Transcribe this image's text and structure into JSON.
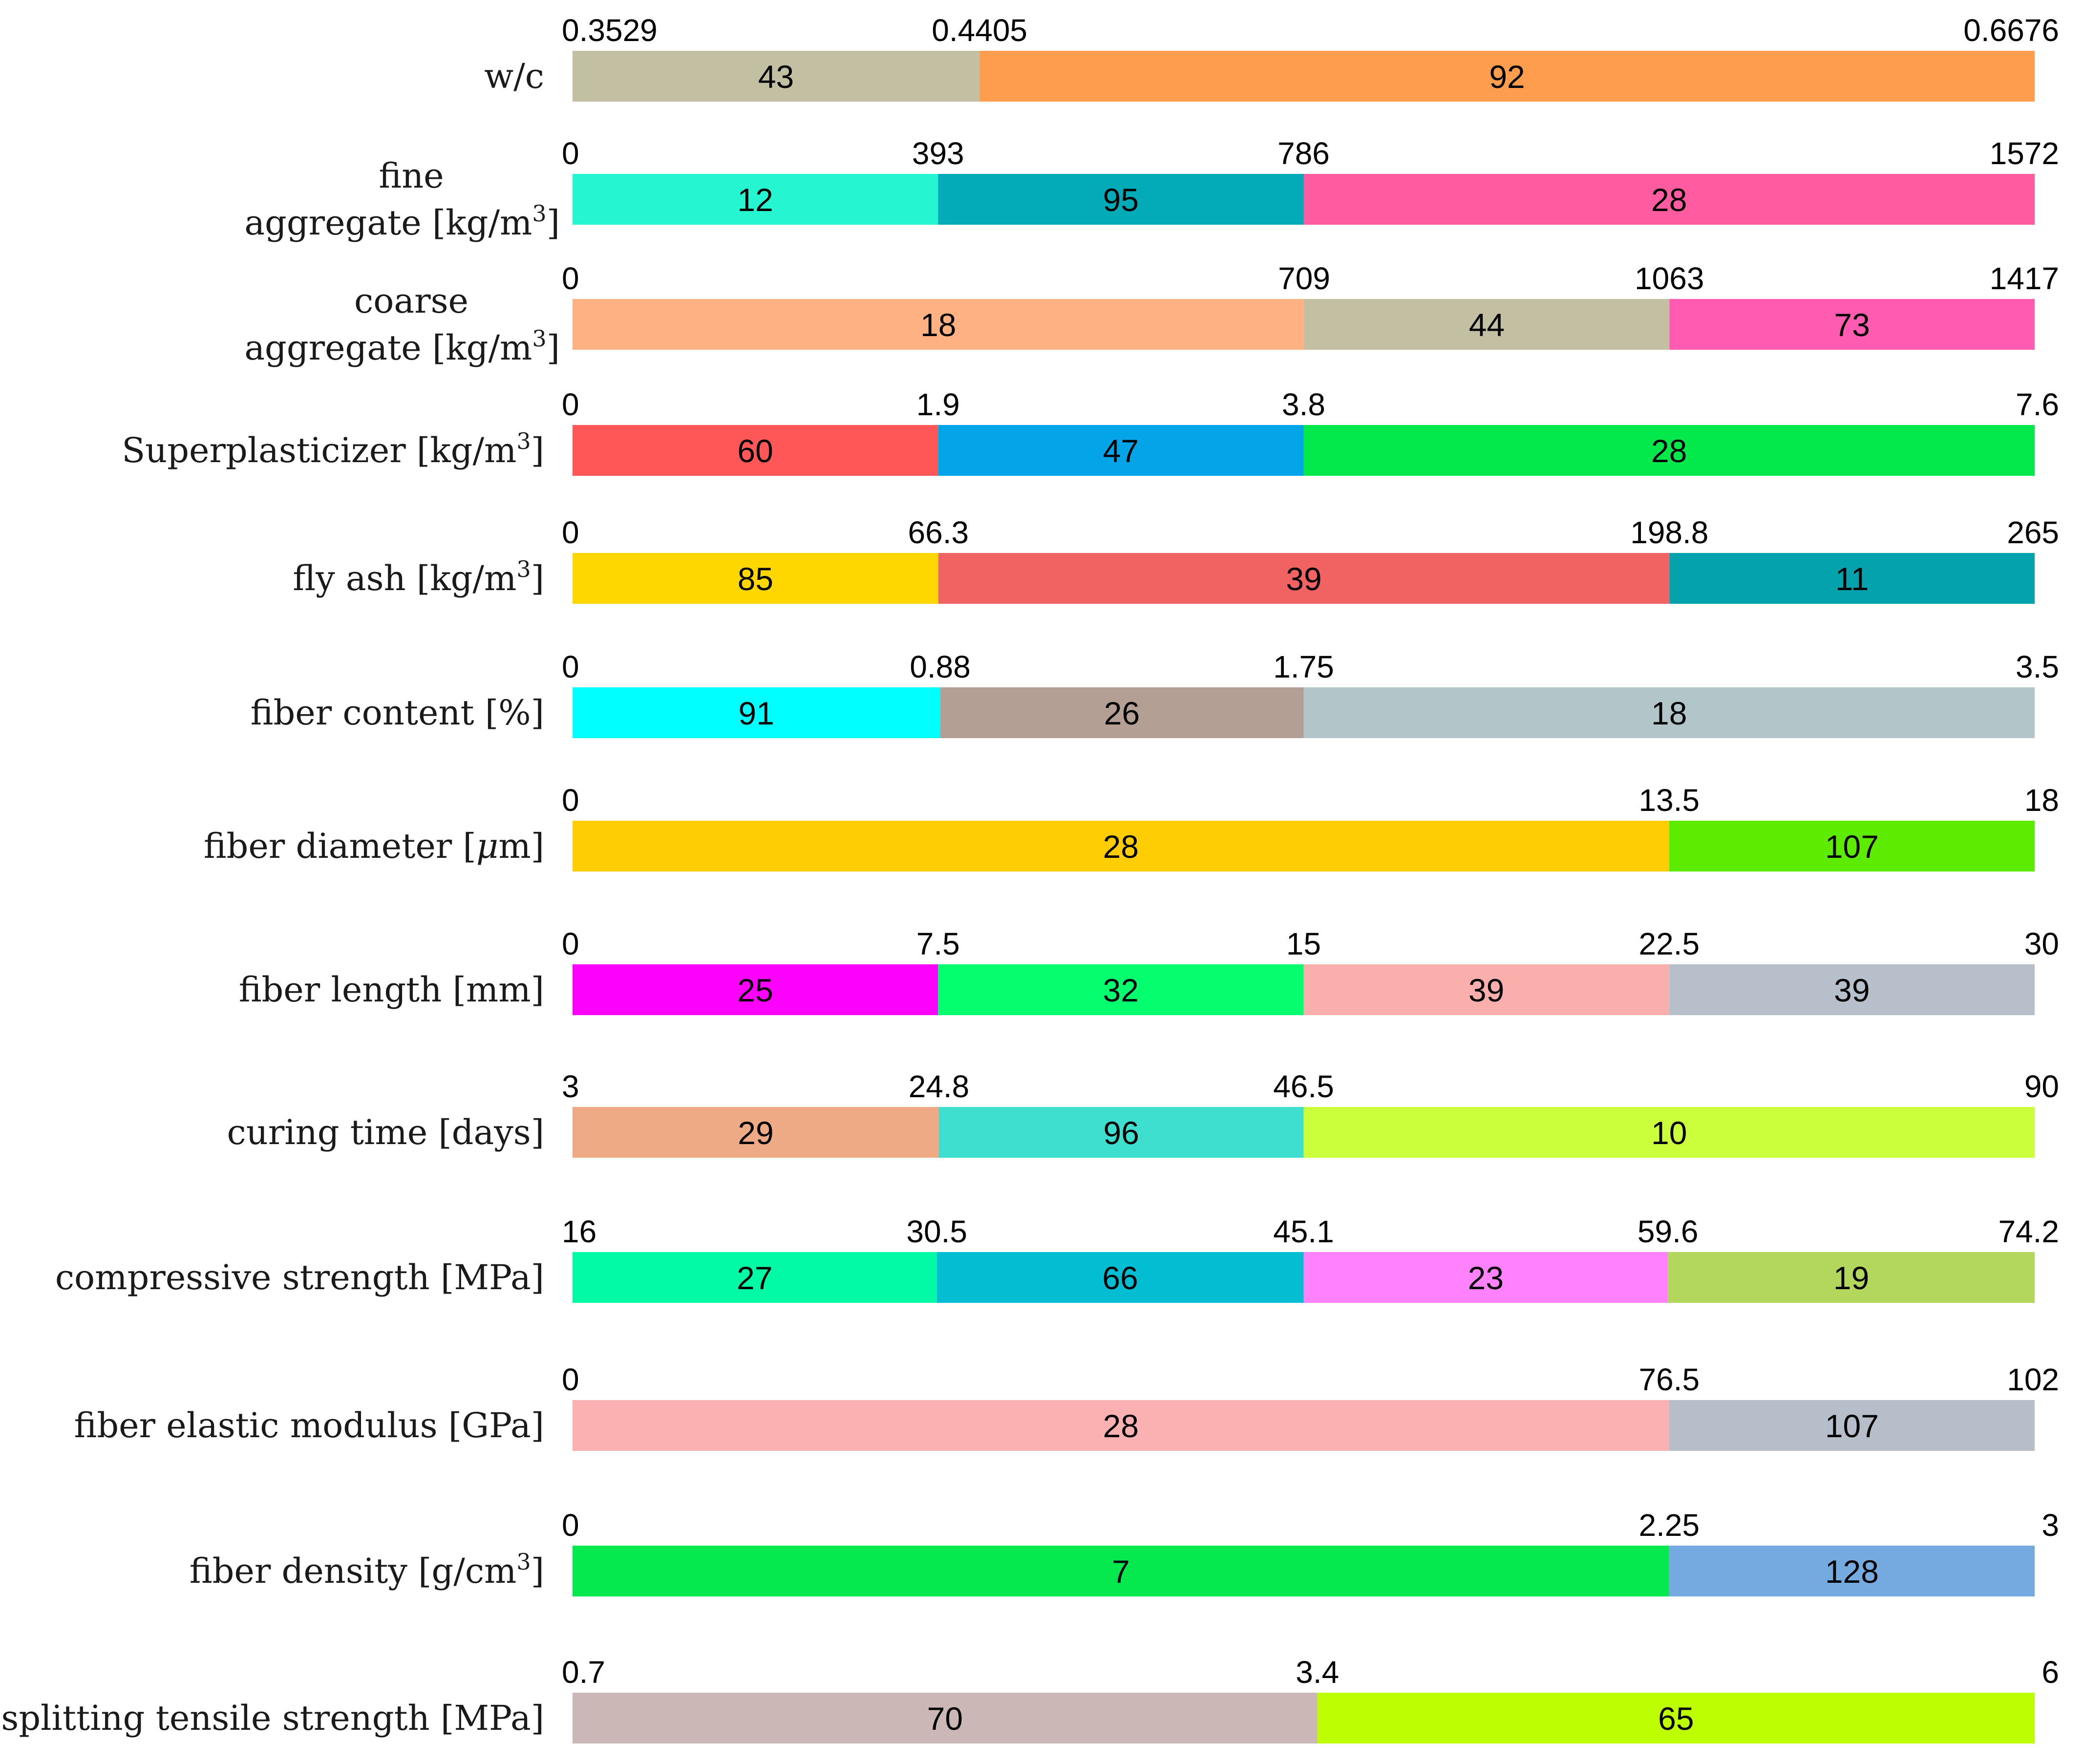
{
  "chart_data": {
    "type": "bar",
    "subtype": "segmented-range-bars",
    "description_note": "Each row splits a variable's value range into intervals; the number inside each segment is the sample count in that interval.",
    "rows": [
      {
        "label": [
          "w/c"
        ],
        "breaks": [
          0.3529,
          0.4405,
          0.6676
        ],
        "break_labels": [
          "0.3529",
          "0.4405",
          "0.6676"
        ],
        "counts": [
          43,
          92
        ],
        "count_labels": [
          "43",
          "92"
        ],
        "colors": [
          "#c2bfa3",
          "#ff9d4f"
        ]
      },
      {
        "label": [
          "fine",
          "aggregate [kg/m",
          "3",
          "]"
        ],
        "breaks": [
          0,
          393,
          786,
          1572
        ],
        "break_labels": [
          "0",
          "393",
          "786",
          "1572"
        ],
        "counts": [
          12,
          95,
          28
        ],
        "count_labels": [
          "12",
          "95",
          "28"
        ],
        "colors": [
          "#26f5d2",
          "#03aab7",
          "#ff5ba0"
        ]
      },
      {
        "label": [
          "coarse",
          "aggregate [kg/m",
          "3",
          "]"
        ],
        "breaks": [
          0,
          709,
          1063,
          1417
        ],
        "break_labels": [
          "0",
          "709",
          "1063",
          "1417"
        ],
        "counts": [
          18,
          44,
          73
        ],
        "count_labels": [
          "18",
          "44",
          "73"
        ],
        "colors": [
          "#feb283",
          "#c2bfa3",
          "#ff5bb1"
        ]
      },
      {
        "label": [
          "Superplasticizer [kg/m",
          "3",
          "]"
        ],
        "breaks": [
          0,
          1.9,
          3.8,
          7.6
        ],
        "break_labels": [
          "0",
          "1.9",
          "3.8",
          "7.6"
        ],
        "counts": [
          60,
          47,
          28
        ],
        "count_labels": [
          "60",
          "47",
          "28"
        ],
        "colors": [
          "#ff5757",
          "#04a4e9",
          "#03e84a"
        ]
      },
      {
        "label": [
          "fly ash [kg/m",
          "3",
          "]"
        ],
        "breaks": [
          0,
          66.3,
          198.8,
          265
        ],
        "break_labels": [
          "0",
          "66.3",
          "198.8",
          "265"
        ],
        "counts": [
          85,
          39,
          11
        ],
        "count_labels": [
          "85",
          "39",
          "11"
        ],
        "colors": [
          "#ffd700",
          "#f16363",
          "#03a2ac"
        ]
      },
      {
        "label": [
          "fiber content [%]"
        ],
        "breaks": [
          0,
          0.88,
          1.75,
          3.5
        ],
        "break_labels": [
          "0",
          "0.88",
          "1.75",
          "3.5"
        ],
        "counts": [
          91,
          26,
          18
        ],
        "count_labels": [
          "91",
          "26",
          "18"
        ],
        "colors": [
          "#00ffff",
          "#b39f93",
          "#b2c5c9"
        ]
      },
      {
        "label": [
          "fiber diameter [",
          "μ",
          "m]"
        ],
        "breaks": [
          0,
          13.5,
          18
        ],
        "break_labels": [
          "0",
          "13.5",
          "18"
        ],
        "counts": [
          28,
          107
        ],
        "count_labels": [
          "28",
          "107"
        ],
        "colors": [
          "#ffcd03",
          "#5eeb02"
        ]
      },
      {
        "label": [
          "fiber length [mm]"
        ],
        "breaks": [
          0,
          7.5,
          15,
          22.5,
          30
        ],
        "break_labels": [
          "0",
          "7.5",
          "15",
          "22.5",
          "30"
        ],
        "counts": [
          25,
          32,
          39,
          39
        ],
        "count_labels": [
          "25",
          "32",
          "39",
          "39"
        ],
        "colors": [
          "#fc02fc",
          "#04fe6e",
          "#fbafad",
          "#b7bfcb"
        ]
      },
      {
        "label": [
          "curing time [days]"
        ],
        "breaks": [
          3,
          24.8,
          46.5,
          90
        ],
        "break_labels": [
          "3",
          "24.8",
          "46.5",
          "90"
        ],
        "counts": [
          29,
          96,
          10
        ],
        "count_labels": [
          "29",
          "96",
          "10"
        ],
        "colors": [
          "#eeaa85",
          "#3fdfcf",
          "#ccff3b"
        ]
      },
      {
        "label": [
          "compressive strength [MPa]"
        ],
        "breaks": [
          16,
          30.5,
          45.1,
          59.6,
          74.2
        ],
        "break_labels": [
          "16",
          "30.5",
          "45.1",
          "59.6",
          "74.2"
        ],
        "counts": [
          27,
          66,
          23,
          19
        ],
        "count_labels": [
          "27",
          "66",
          "23",
          "19"
        ],
        "colors": [
          "#02faa6",
          "#03bdd3",
          "#ff81fb",
          "#b3d65c"
        ]
      },
      {
        "label": [
          "fiber elastic modulus [GPa]"
        ],
        "breaks": [
          0,
          76.5,
          102
        ],
        "break_labels": [
          "0",
          "76.5",
          "102"
        ],
        "counts": [
          28,
          107
        ],
        "count_labels": [
          "28",
          "107"
        ],
        "colors": [
          "#fbb1b1",
          "#b6bfc9"
        ]
      },
      {
        "label": [
          "fiber density [g/cm",
          "3",
          "]"
        ],
        "breaks": [
          0,
          2.25,
          3
        ],
        "break_labels": [
          "0",
          "2.25",
          "3"
        ],
        "counts": [
          7,
          128
        ],
        "count_labels": [
          "7",
          "128"
        ],
        "colors": [
          "#06e94e",
          "#75aae0"
        ]
      },
      {
        "label": [
          "splitting tensile strength [MPa]"
        ],
        "breaks": [
          0.7,
          3.4,
          6
        ],
        "break_labels": [
          "0.7",
          "3.4",
          "6"
        ],
        "counts": [
          70,
          65
        ],
        "count_labels": [
          "70",
          "65"
        ],
        "colors": [
          "#cbb7b5",
          "#bdfe03"
        ]
      }
    ]
  }
}
